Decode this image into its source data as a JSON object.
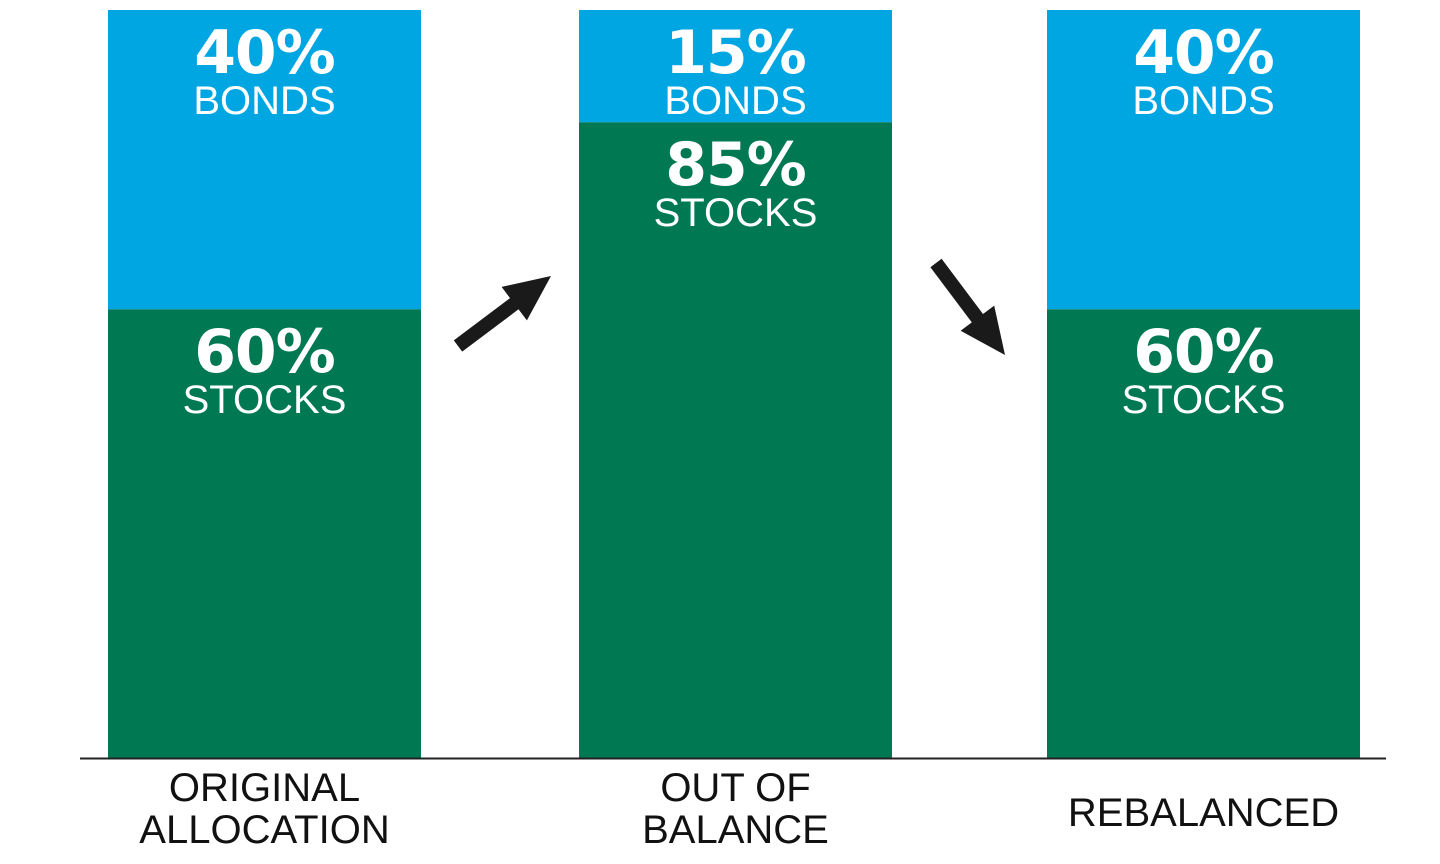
{
  "chart_data": {
    "type": "bar",
    "stacked": true,
    "categories": [
      [
        "ORIGINAL",
        "ALLOCATION"
      ],
      [
        "OUT OF",
        "BALANCE"
      ],
      [
        "REBALANCED"
      ]
    ],
    "series": [
      {
        "name": "STOCKS",
        "values": [
          60,
          85,
          60
        ],
        "labels": [
          "60%",
          "85%",
          "60%"
        ],
        "color": "#007852"
      },
      {
        "name": "BONDS",
        "values": [
          40,
          15,
          40
        ],
        "labels": [
          "40%",
          "15%",
          "40%"
        ],
        "color": "#00a6e2"
      }
    ],
    "ylim": [
      0,
      100
    ],
    "grid": false,
    "legend": "none",
    "arrows": [
      {
        "between": [
          0,
          1
        ],
        "direction": "up-right",
        "icon": "arrow-up-right-icon",
        "color": "#1a1a1a"
      },
      {
        "between": [
          1,
          2
        ],
        "direction": "down-right",
        "icon": "arrow-down-right-icon",
        "color": "#1a1a1a"
      }
    ],
    "baseline_color": "#222222"
  }
}
